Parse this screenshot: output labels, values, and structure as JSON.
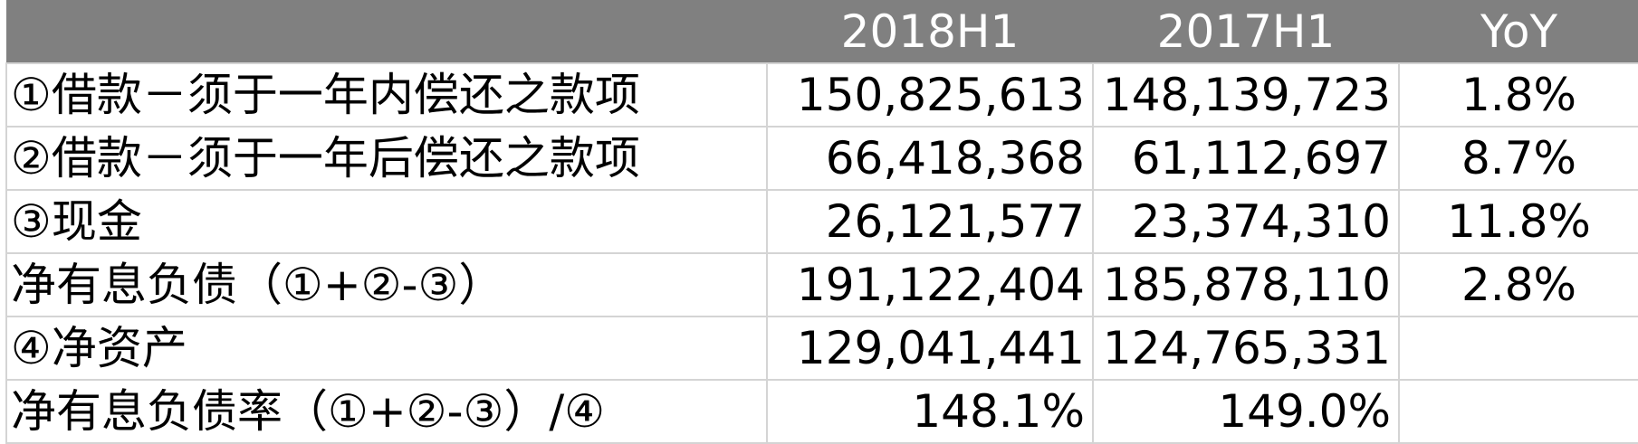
{
  "header": [
    "",
    "2018H1",
    "2017H1",
    "YoY"
  ],
  "rows": [
    {
      "label": "①借款－须于一年内偿还之款项",
      "h1_2018": "150,825,613",
      "h1_2017": "148,139,723",
      "yoy": "1.8%"
    },
    {
      "label": "②借款－须于一年后偿还之款项",
      "h1_2018": "66,418,368",
      "h1_2017": "61,112,697",
      "yoy": "8.7%"
    },
    {
      "label": "③现金",
      "h1_2018": "26,121,577",
      "h1_2017": "23,374,310",
      "yoy": "11.8%"
    },
    {
      "label": "净有息负债（①+②-③）",
      "h1_2018": "191,122,404",
      "h1_2017": "185,878,110",
      "yoy": "2.8%"
    },
    {
      "label": "④净资产",
      "h1_2018": "129,041,441",
      "h1_2017": "124,765,331",
      "yoy": ""
    },
    {
      "label": "净有息负债率（①+②-③）/④",
      "h1_2018": "148.1%",
      "h1_2017": "149.0%",
      "yoy": ""
    }
  ],
  "colors": {
    "header_bg": "#808080",
    "header_text": "#ffffff",
    "grid": "#d4d4d4"
  }
}
